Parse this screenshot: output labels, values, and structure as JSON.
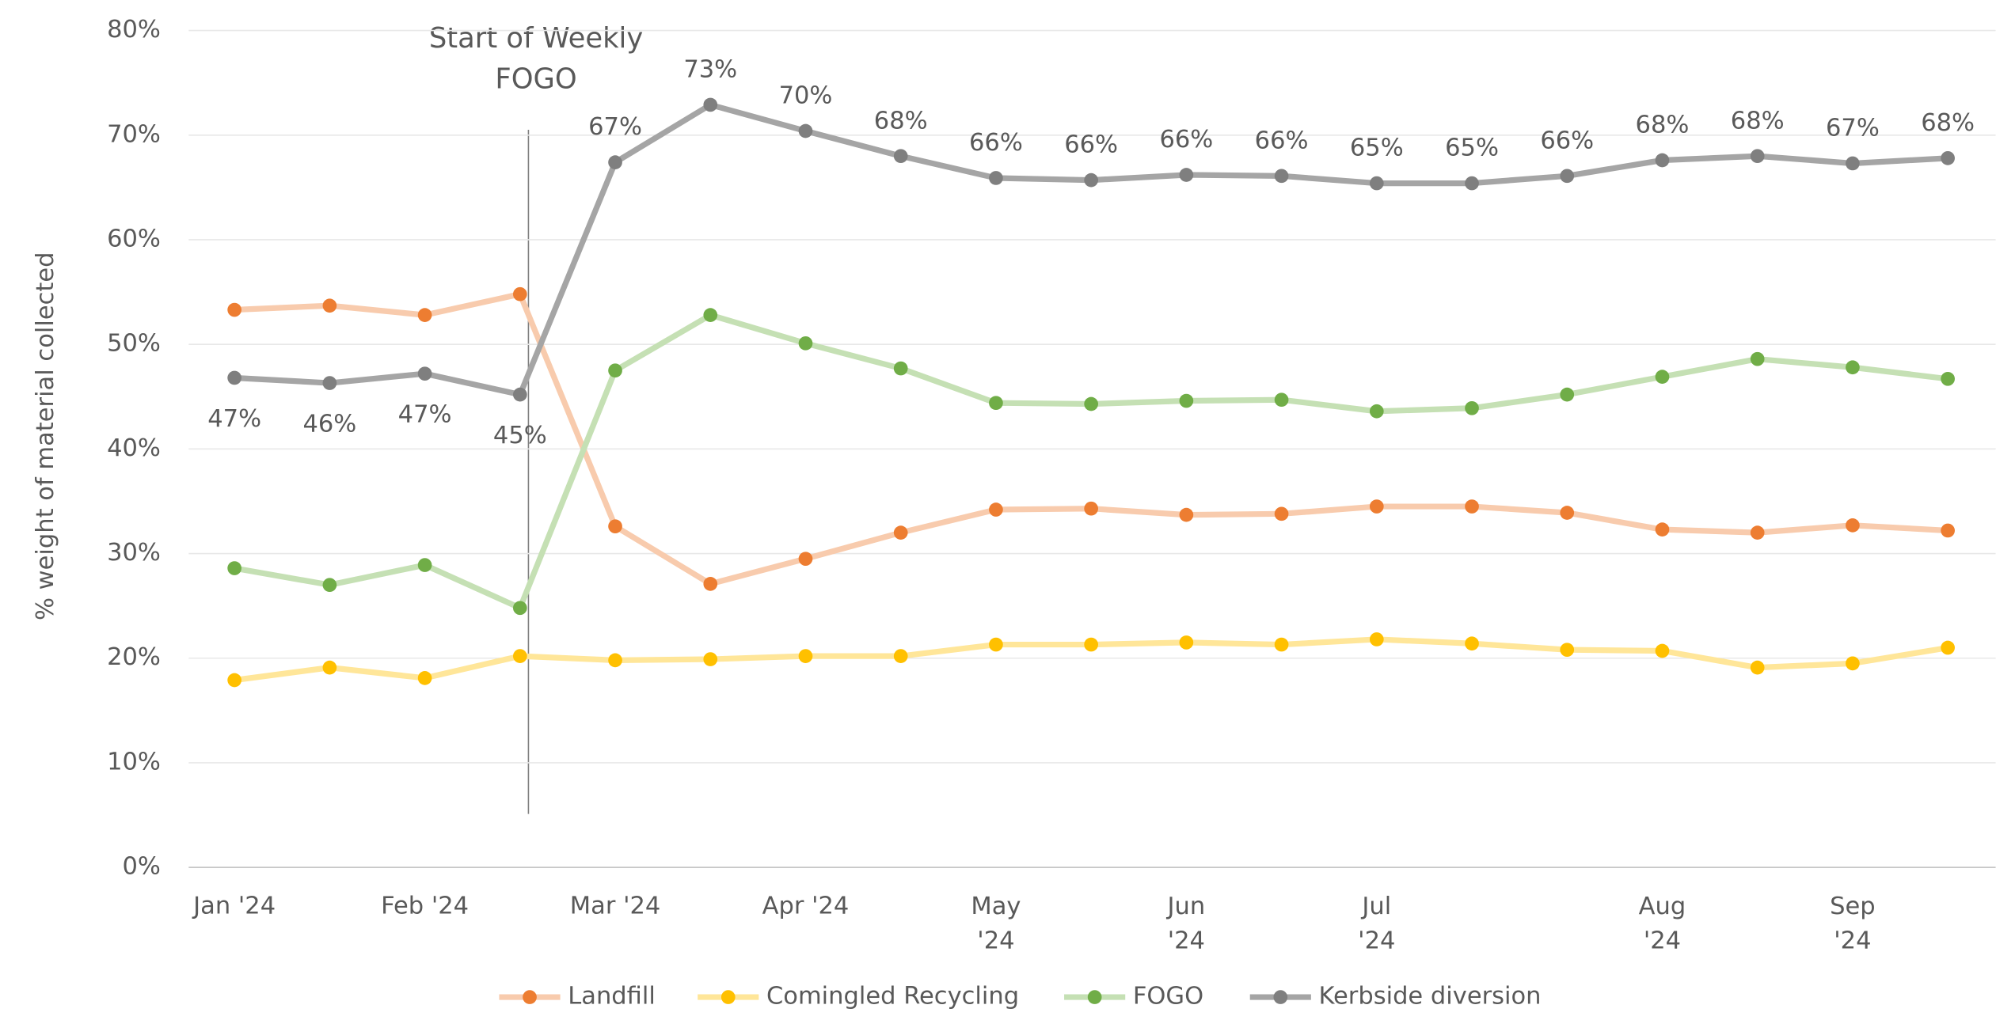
{
  "chart_data": {
    "type": "line",
    "y_label": "% weight of material collected",
    "annotation": [
      "Start of Weekly",
      "FOGO"
    ],
    "categories": [
      "Jan '24",
      null,
      "Feb '24",
      null,
      "Mar '24",
      null,
      "Apr '24",
      null,
      "May '24",
      null,
      "Jun '24",
      null,
      "Jul '24",
      null,
      null,
      "Aug '24",
      null,
      "Sep '24",
      null
    ],
    "ylim": [
      0,
      80
    ],
    "yticks": [
      {
        "value": 0,
        "label": "0%"
      },
      {
        "value": 10,
        "label": "10%"
      },
      {
        "value": 20,
        "label": "20%"
      },
      {
        "value": 30,
        "label": "30%"
      },
      {
        "value": 40,
        "label": "40%"
      },
      {
        "value": 50,
        "label": "50%"
      },
      {
        "value": 60,
        "label": "60%"
      },
      {
        "value": 70,
        "label": "70%"
      },
      {
        "value": 80,
        "label": "80%"
      }
    ],
    "grid": true,
    "legend": "bottom",
    "series": [
      {
        "name": "Landfill",
        "color": "#f8cbad",
        "marker_color": "#ed7d31",
        "values": [
          53.3,
          53.7,
          52.8,
          54.8,
          32.6,
          27.1,
          29.5,
          32.0,
          34.2,
          34.3,
          33.7,
          33.8,
          34.5,
          34.5,
          33.9,
          32.3,
          32.0,
          32.7,
          32.2
        ]
      },
      {
        "name": "Comingled Recycling",
        "color": "#ffe699",
        "marker_color": "#ffc000",
        "values": [
          17.9,
          19.1,
          18.1,
          20.2,
          19.8,
          19.9,
          20.2,
          20.2,
          21.3,
          21.3,
          21.5,
          21.3,
          21.8,
          21.4,
          20.8,
          20.7,
          19.1,
          19.5,
          21.0
        ]
      },
      {
        "name": "FOGO",
        "color": "#c5e0b4",
        "marker_color": "#70ad47",
        "values": [
          28.6,
          27.0,
          28.9,
          24.8,
          47.5,
          52.8,
          50.1,
          47.7,
          44.4,
          44.3,
          44.6,
          44.7,
          43.6,
          43.9,
          45.2,
          46.9,
          48.6,
          47.8,
          46.7
        ]
      },
      {
        "name": "Kerbside diversion",
        "color": "#a5a5a5",
        "marker_color": "#7f7f7f",
        "values": [
          46.8,
          46.3,
          47.2,
          45.2,
          67.4,
          72.9,
          70.4,
          68.0,
          65.9,
          65.7,
          66.2,
          66.1,
          65.4,
          65.4,
          66.1,
          67.6,
          68.0,
          67.3,
          67.8
        ],
        "value_labels": [
          "47%",
          "46%",
          "47%",
          "45%",
          "67%",
          "73%",
          "70%",
          "68%",
          "66%",
          "66%",
          "66%",
          "66%",
          "65%",
          "65%",
          "66%",
          "68%",
          "68%",
          "67%",
          "68%"
        ]
      }
    ]
  }
}
